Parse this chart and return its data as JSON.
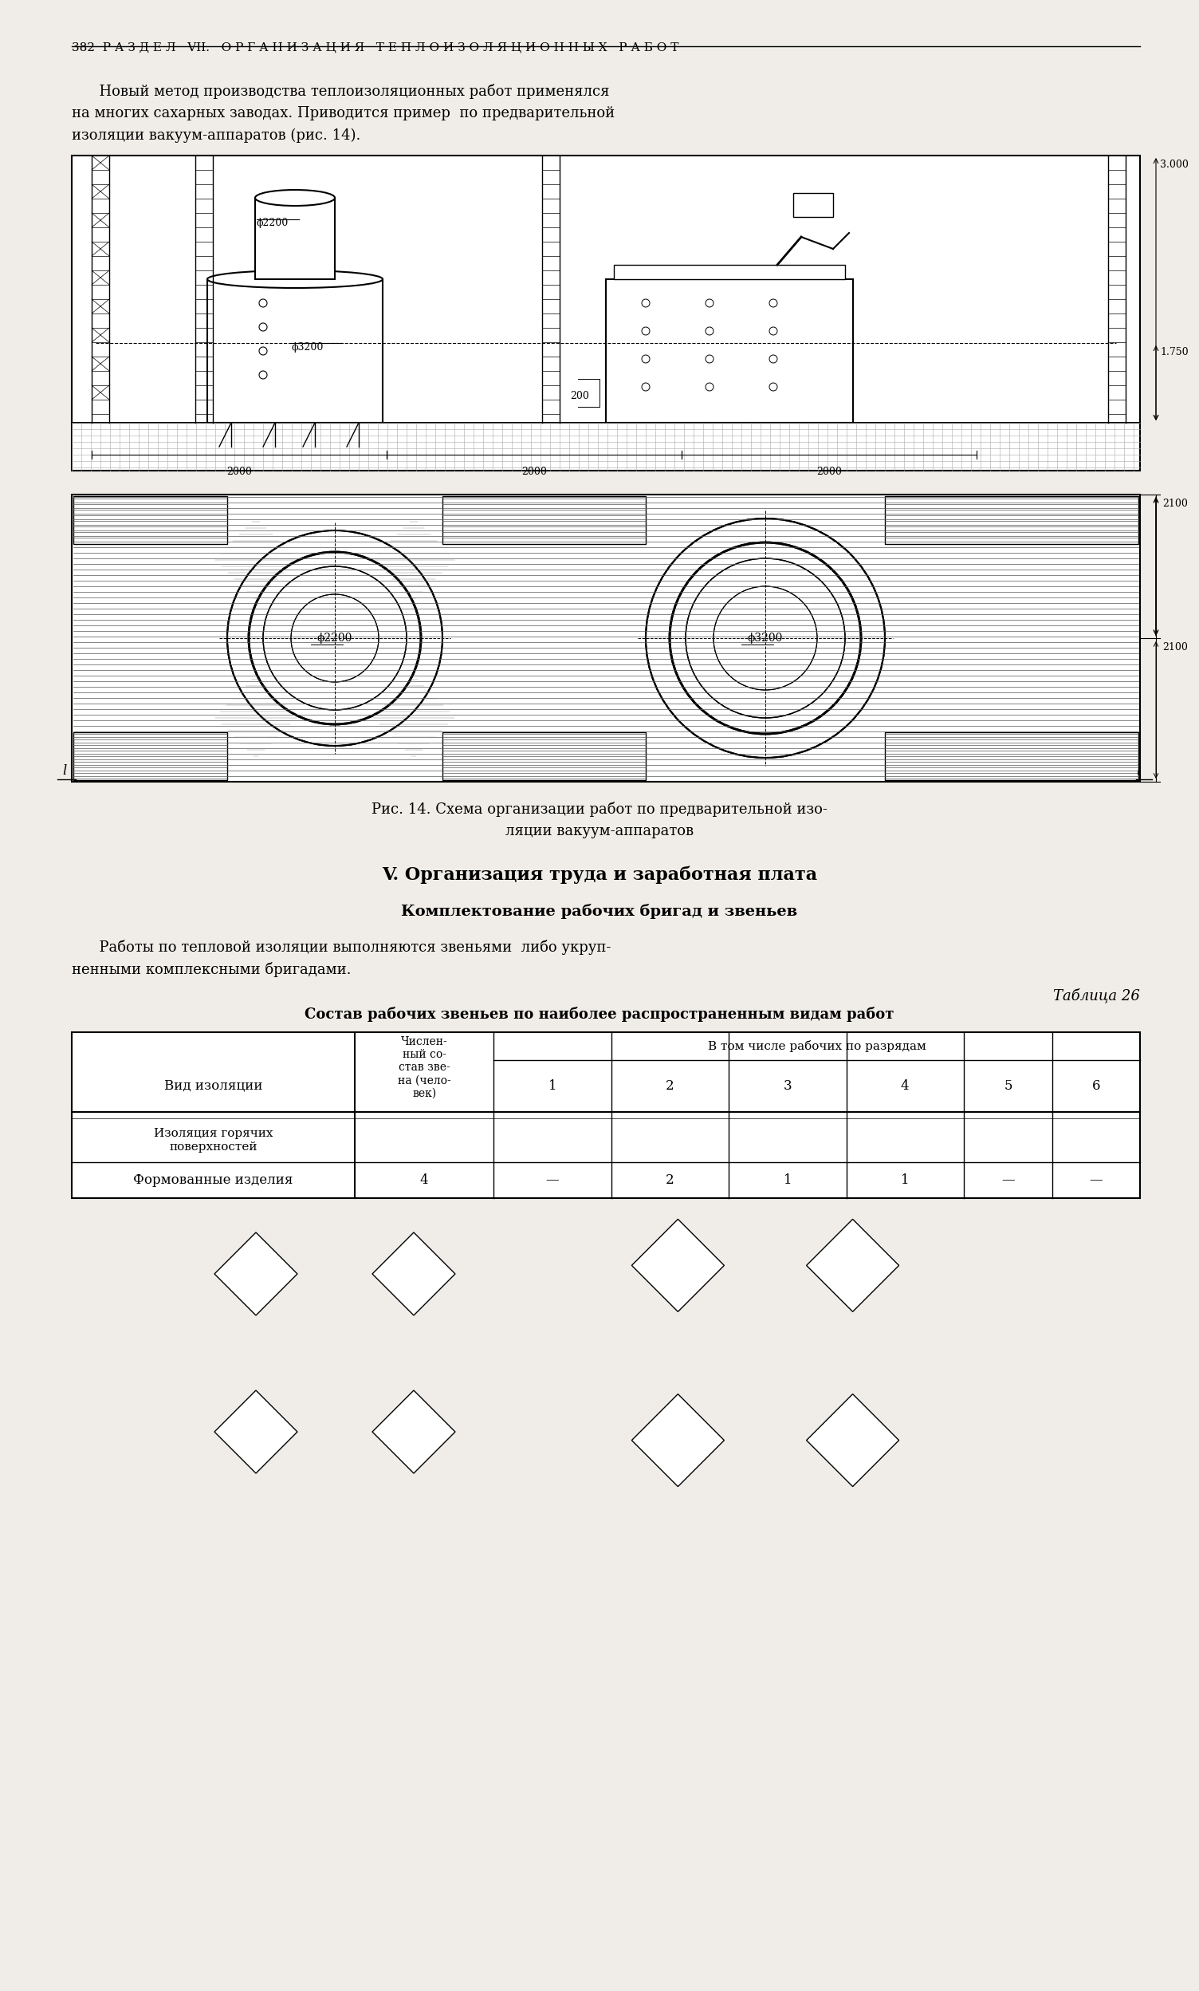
{
  "page_bg": "#f0ede8",
  "header_text": "382  Р А З Д Е Л   VII.   О Р Г А Н И З А Ц И О Н Н Ы Х   Р А Б О Т",
  "section_title": "V. Организация труда и заработная плата",
  "subsection_title": "Комплектование рабочих бригад и звеньев",
  "table_label": "Таблица 26",
  "table_title": "Состав рабочих звеньев по наиболее распространенным видам работ",
  "subheader": "В том числе рабочих по разрядам",
  "row_group1": "Изоляция горячих\nповерхностей",
  "row1": [
    "Формованные изделия",
    "4",
    "—",
    "2",
    "1",
    "1",
    "—",
    "—"
  ]
}
